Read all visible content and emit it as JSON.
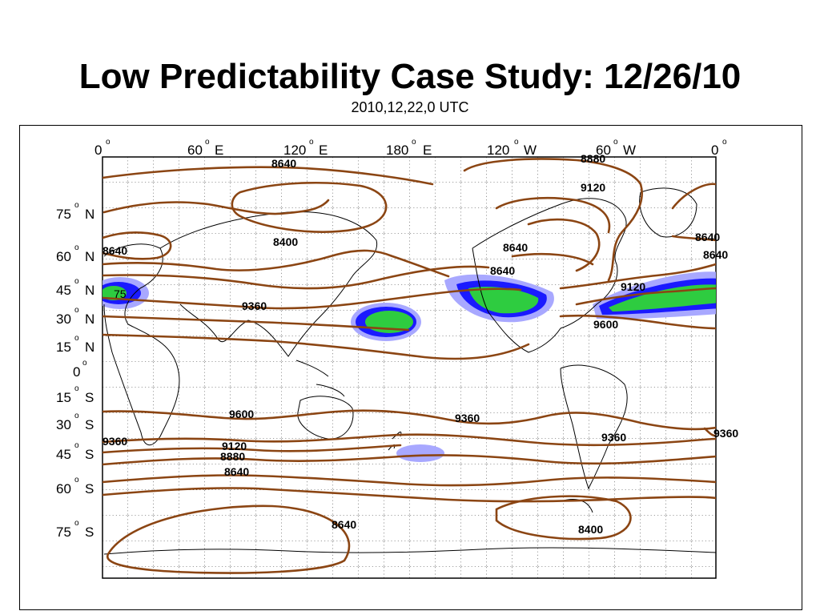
{
  "title": "Low Predictability Case Study: 12/26/10",
  "subtitle": "2010,12,22,0 UTC",
  "map": {
    "projection": "cylindrical equidistant",
    "longitude_labels": [
      {
        "deg": "0",
        "hemi": ""
      },
      {
        "deg": "60",
        "hemi": "E"
      },
      {
        "deg": "120",
        "hemi": "E"
      },
      {
        "deg": "180",
        "hemi": "E"
      },
      {
        "deg": "120",
        "hemi": "W"
      },
      {
        "deg": "60",
        "hemi": "W"
      },
      {
        "deg": "0",
        "hemi": ""
      }
    ],
    "latitude_labels": [
      {
        "deg": "75",
        "hemi": "N"
      },
      {
        "deg": "60",
        "hemi": "N"
      },
      {
        "deg": "45",
        "hemi": "N"
      },
      {
        "deg": "30",
        "hemi": "N"
      },
      {
        "deg": "15",
        "hemi": "N"
      },
      {
        "deg": "0",
        "hemi": ""
      },
      {
        "deg": "15",
        "hemi": "S"
      },
      {
        "deg": "30",
        "hemi": "S"
      },
      {
        "deg": "45",
        "hemi": "S"
      },
      {
        "deg": "60",
        "hemi": "S"
      },
      {
        "deg": "75",
        "hemi": "S"
      }
    ],
    "contour_labels": [
      "8640",
      "8880",
      "9120",
      "8640",
      "8400",
      "8640",
      "8640",
      "8640",
      "8640",
      "9120",
      "9360",
      "9600",
      "9600",
      "9360",
      "9360",
      "9360",
      "9120",
      "8880",
      "8640",
      "9360",
      "8640",
      "8400",
      "75"
    ],
    "colors": {
      "contour": "#8B4513",
      "coast": "#000000",
      "shade_inner": "#2ecc40",
      "shade_outer": "#1a1aff",
      "shade_halo": "#a8a8ff"
    }
  }
}
